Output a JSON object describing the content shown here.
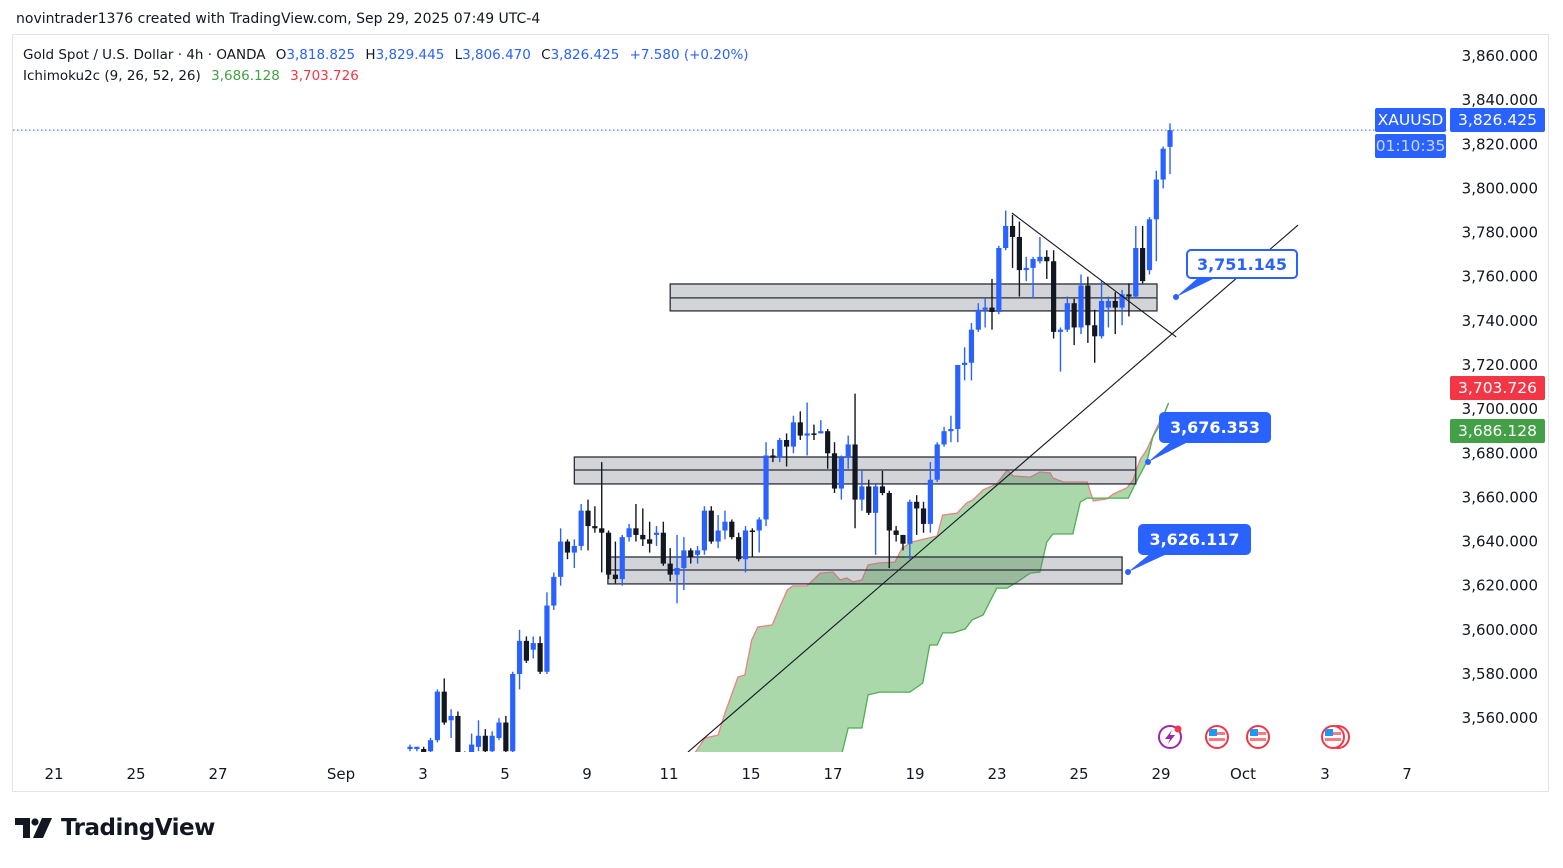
{
  "attribution": "novintrader1376 created with TradingView.com, Sep 29, 2025 07:49 UTC-4",
  "legend": {
    "symbol_desc": "Gold Spot / U.S. Dollar · 4h · OANDA",
    "o_label": "O",
    "o": "3,818.825",
    "h_label": "H",
    "h": "3,829.445",
    "l_label": "L",
    "l": "3,806.470",
    "c_label": "C",
    "c": "3,826.425",
    "change": "+7.580 (+0.20%)",
    "indicator": "Ichimoku2c (9, 26, 52, 26)",
    "ind_val1": "3,686.128",
    "ind_val2": "3,703.726"
  },
  "price_tags": {
    "symbol": "XAUUSD",
    "last": "3,826.425",
    "countdown": "01:10:35",
    "ichimoku_red": "3,703.726",
    "ichimoku_green": "3,686.128"
  },
  "callouts": [
    "3,751.145",
    "3,676.353",
    "3,626.117"
  ],
  "brand": "TradingView",
  "colors": {
    "up": "#2962ff",
    "down": "#131722",
    "cloud": "#a5d6a7",
    "span_red": "#ef7f86",
    "span_green": "#4caf50",
    "accent": "#2962ff",
    "red_tag": "#f23645",
    "green_tag": "#43a047"
  },
  "events": [
    "lightning-icon",
    "us-flag-icon",
    "us-flag-icon",
    "us-flag-double-icon"
  ],
  "chart_data": {
    "type": "candlestick",
    "symbol": "XAUUSD",
    "timeframe": "4h",
    "y_ticks": [
      "3,860.000",
      "3,840.000",
      "3,820.000",
      "3,800.000",
      "3,780.000",
      "3,760.000",
      "3,740.000",
      "3,720.000",
      "3,700.000",
      "3,680.000",
      "3,660.000",
      "3,640.000",
      "3,620.000",
      "3,600.000",
      "3,580.000",
      "3,560.000"
    ],
    "ylim": [
      3545,
      3870
    ],
    "x_ticks": [
      "21",
      "25",
      "27",
      "Sep",
      "3",
      "5",
      "9",
      "11",
      "15",
      "17",
      "19",
      "23",
      "25",
      "29",
      "Oct",
      "3",
      "7"
    ],
    "candles_ohlc": [
      [
        3546,
        3548,
        3545,
        3547
      ],
      [
        3546,
        3547,
        3545,
        3547
      ],
      [
        3546,
        3547,
        3541,
        3542
      ],
      [
        3545,
        3551,
        3543,
        3550
      ],
      [
        3550,
        3573,
        3549,
        3572
      ],
      [
        3572,
        3578,
        3557,
        3558
      ],
      [
        3559,
        3564,
        3551,
        3561
      ],
      [
        3561,
        3563,
        3538,
        3540
      ],
      [
        3543,
        3545,
        3541,
        3544
      ],
      [
        3544,
        3553,
        3542,
        3548
      ],
      [
        3547,
        3559,
        3545,
        3552
      ],
      [
        3552,
        3555,
        3544,
        3545
      ],
      [
        3545,
        3554,
        3543,
        3552
      ],
      [
        3551,
        3560,
        3550,
        3558
      ],
      [
        3558,
        3561,
        3544,
        3545
      ],
      [
        3545,
        3581,
        3544,
        3580
      ],
      [
        3580,
        3600,
        3573,
        3595
      ],
      [
        3595,
        3597,
        3585,
        3586
      ],
      [
        3591,
        3597,
        3587,
        3594
      ],
      [
        3594,
        3597,
        3580,
        3581
      ],
      [
        3581,
        3617,
        3580,
        3611
      ],
      [
        3611,
        3626,
        3609,
        3624
      ],
      [
        3624,
        3646,
        3620,
        3640
      ],
      [
        3640,
        3641,
        3632,
        3635
      ],
      [
        3635,
        3641,
        3628,
        3638
      ],
      [
        3638,
        3657,
        3636,
        3654
      ],
      [
        3654,
        3659,
        3636,
        3647
      ],
      [
        3647,
        3656,
        3644,
        3646
      ],
      [
        3646,
        3676,
        3626,
        3644
      ],
      [
        3644,
        3645,
        3623,
        3625
      ],
      [
        3625,
        3640,
        3621,
        3623
      ],
      [
        3623,
        3643,
        3620,
        3642
      ],
      [
        3642,
        3648,
        3640,
        3646
      ],
      [
        3646,
        3657,
        3640,
        3643
      ],
      [
        3643,
        3655,
        3638,
        3641
      ],
      [
        3641,
        3649,
        3635,
        3639
      ],
      [
        3643,
        3647,
        3638,
        3644
      ],
      [
        3644,
        3649,
        3629,
        3630
      ],
      [
        3630,
        3637,
        3622,
        3625
      ],
      [
        3625,
        3643,
        3612,
        3628
      ],
      [
        3628,
        3642,
        3618,
        3636
      ],
      [
        3636,
        3637,
        3630,
        3633
      ],
      [
        3634,
        3638,
        3630,
        3636
      ],
      [
        3636,
        3656,
        3634,
        3654
      ],
      [
        3654,
        3656,
        3639,
        3640
      ],
      [
        3640,
        3652,
        3637,
        3645
      ],
      [
        3645,
        3654,
        3641,
        3649
      ],
      [
        3649,
        3650,
        3641,
        3642
      ],
      [
        3642,
        3644,
        3631,
        3632
      ],
      [
        3632,
        3647,
        3626,
        3645
      ],
      [
        3645,
        3646,
        3633,
        3644.8
      ],
      [
        3645,
        3651,
        3635,
        3650
      ],
      [
        3650,
        3685,
        3647,
        3679
      ],
      [
        3679,
        3682,
        3676,
        3678
      ],
      [
        3678,
        3687,
        3676,
        3686
      ],
      [
        3686,
        3689,
        3674,
        3683
      ],
      [
        3683,
        3697,
        3680,
        3694
      ],
      [
        3694,
        3699,
        3686,
        3688
      ],
      [
        3688,
        3703,
        3679,
        3689
      ],
      [
        3689,
        3693,
        3686,
        3688.8
      ],
      [
        3689,
        3695,
        3689,
        3690
      ],
      [
        3690,
        3691,
        3673,
        3680
      ],
      [
        3680,
        3685,
        3662,
        3664
      ],
      [
        3664,
        3679,
        3659,
        3678
      ],
      [
        3678,
        3688,
        3673,
        3684
      ],
      [
        3684,
        3707,
        3646,
        3659
      ],
      [
        3659,
        3672,
        3654,
        3665
      ],
      [
        3665,
        3668,
        3652,
        3653
      ],
      [
        3653,
        3666,
        3634,
        3665
      ],
      [
        3665,
        3672,
        3661,
        3662
      ],
      [
        3662,
        3663,
        3628,
        3645
      ],
      [
        3645,
        3647,
        3640,
        3643
      ],
      [
        3643,
        3643,
        3636,
        3639
      ],
      [
        3639,
        3659,
        3632,
        3658
      ],
      [
        3658,
        3661,
        3643,
        3655
      ],
      [
        3655,
        3658,
        3644,
        3648
      ],
      [
        3648,
        3676,
        3644,
        3668
      ],
      [
        3668,
        3685,
        3667,
        3684
      ],
      [
        3684,
        3692,
        3683,
        3690
      ],
      [
        3690,
        3697,
        3685,
        3691
      ],
      [
        3691,
        3720,
        3685,
        3720
      ],
      [
        3720,
        3728,
        3713,
        3721
      ],
      [
        3721,
        3739,
        3713,
        3736
      ],
      [
        3736,
        3748,
        3735,
        3745
      ],
      [
        3745,
        3750,
        3737,
        3746
      ],
      [
        3746,
        3759,
        3736,
        3744
      ],
      [
        3744,
        3774,
        3743,
        3773
      ],
      [
        3773,
        3790,
        3772,
        3783
      ],
      [
        3783,
        3788,
        3764,
        3778
      ],
      [
        3778,
        3785,
        3751,
        3763
      ],
      [
        3763,
        3769,
        3758,
        3764
      ],
      [
        3764,
        3769,
        3750,
        3768
      ],
      [
        3767,
        3778,
        3766,
        3769
      ],
      [
        3769,
        3772,
        3759,
        3767
      ],
      [
        3767,
        3772,
        3732,
        3735
      ],
      [
        3735,
        3737,
        3717,
        3736
      ],
      [
        3736,
        3751,
        3735,
        3748
      ],
      [
        3748,
        3750,
        3729,
        3737
      ],
      [
        3737,
        3761,
        3734,
        3756
      ],
      [
        3756,
        3760,
        3730,
        3738
      ],
      [
        3738,
        3745,
        3721,
        3733
      ],
      [
        3733,
        3758,
        3732,
        3749
      ],
      [
        3746,
        3751,
        3737,
        3749
      ],
      [
        3749,
        3753,
        3734,
        3746
      ],
      [
        3746,
        3754,
        3738,
        3752
      ],
      [
        3752,
        3757,
        3742,
        3751
      ],
      [
        3751,
        3783,
        3750,
        3773
      ],
      [
        3773,
        3783,
        3757,
        3758
      ],
      [
        3763,
        3787,
        3761,
        3786
      ],
      [
        3786,
        3808,
        3767,
        3804
      ],
      [
        3804,
        3819,
        3800,
        3818
      ],
      [
        3818.825,
        3829.445,
        3806.47,
        3826.425
      ]
    ],
    "ichimoku_cloud": {
      "upper_red": [
        [
          41.6,
          3544.2
        ],
        [
          43.1,
          3551
        ],
        [
          45,
          3552.3
        ],
        [
          46,
          3562.3
        ],
        [
          47.9,
          3578.6
        ],
        [
          48.9,
          3579.5
        ],
        [
          49.9,
          3595.4
        ],
        [
          50.8,
          3601.3
        ],
        [
          52.9,
          3602.2
        ],
        [
          54,
          3610.3
        ],
        [
          55.1,
          3618
        ],
        [
          55.9,
          3619.9
        ],
        [
          58,
          3619.9
        ],
        [
          59.9,
          3625.7
        ],
        [
          61.8,
          3626.2
        ],
        [
          62.8,
          3622.6
        ],
        [
          63.8,
          3623.5
        ],
        [
          64.7,
          3621.7
        ],
        [
          66,
          3622.6
        ],
        [
          66.9,
          3629.4
        ],
        [
          68.6,
          3630.3
        ],
        [
          70.8,
          3630.7
        ],
        [
          71.9,
          3637.1
        ],
        [
          73.3,
          3639.8
        ],
        [
          77,
          3642.5
        ],
        [
          77.8,
          3652
        ],
        [
          79.9,
          3652.9
        ],
        [
          81.3,
          3657.5
        ],
        [
          82.2,
          3658.8
        ],
        [
          83.7,
          3663.4
        ],
        [
          85.7,
          3666.1
        ],
        [
          87.2,
          3672.4
        ],
        [
          88.1,
          3669.7
        ],
        [
          90.6,
          3669.2
        ],
        [
          92,
          3671.5
        ],
        [
          93.5,
          3671.1
        ],
        [
          93.9,
          3668.8
        ],
        [
          95.4,
          3667
        ],
        [
          98.9,
          3667
        ],
        [
          99.8,
          3658.4
        ],
        [
          101.8,
          3659.3
        ],
        [
          102.7,
          3661.5
        ],
        [
          104.7,
          3664.3
        ],
        [
          105.6,
          3667.9
        ],
        [
          106.6,
          3676.9
        ],
        [
          107.6,
          3681.5
        ],
        [
          109.1,
          3691.9
        ],
        [
          110.2,
          3698.2
        ],
        [
          110.8,
          3702.8
        ]
      ],
      "lower_green": [
        [
          63.1,
          3544.2
        ],
        [
          64,
          3555.5
        ],
        [
          66,
          3555.5
        ],
        [
          66.9,
          3570.5
        ],
        [
          68.6,
          3571.8
        ],
        [
          73,
          3571.8
        ],
        [
          74.9,
          3575.9
        ],
        [
          75.9,
          3593.1
        ],
        [
          77,
          3593.1
        ],
        [
          77.8,
          3598.6
        ],
        [
          79.3,
          3598.6
        ],
        [
          81.1,
          3600.4
        ],
        [
          82.1,
          3604.5
        ],
        [
          83.7,
          3606.7
        ],
        [
          85.7,
          3618.9
        ],
        [
          87.2,
          3618.9
        ],
        [
          88.7,
          3621.7
        ],
        [
          90.6,
          3625.7
        ],
        [
          92,
          3626.2
        ],
        [
          93,
          3639.8
        ],
        [
          93.9,
          3643.4
        ],
        [
          96.8,
          3643.4
        ],
        [
          97.9,
          3657.9
        ],
        [
          98.9,
          3659.7
        ],
        [
          104.9,
          3659.7
        ],
        [
          106.2,
          3667.9
        ],
        [
          107.6,
          3676
        ],
        [
          108.5,
          3687.4
        ],
        [
          109.5,
          3692.8
        ],
        [
          110.8,
          3702.8
        ]
      ]
    },
    "zones": [
      {
        "bars": [
          38,
          109.1
        ],
        "top": 3756.7,
        "mid": 3750.4,
        "bottom": 3744.5
      },
      {
        "bars": [
          24,
          106
        ],
        "top": 3678.3,
        "mid": 3672.4,
        "bottom": 3666.1
      },
      {
        "bars": [
          28.9,
          104
        ],
        "top": 3633,
        "mid": 3627.1,
        "bottom": 3620.8
      }
    ],
    "trendlines": [
      {
        "from": [
          40.6,
          3544.6
        ],
        "to": [
          129.7,
          3783.4
        ]
      },
      {
        "from": [
          87.9,
          3788.9
        ],
        "to": [
          111.9,
          3732.7
        ]
      }
    ],
    "last_price": 3826.425,
    "grid": false
  }
}
